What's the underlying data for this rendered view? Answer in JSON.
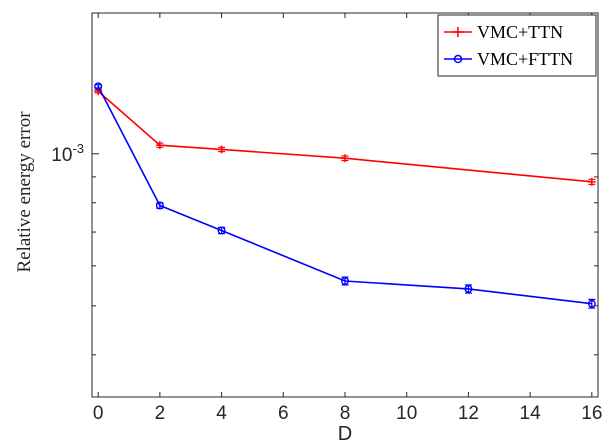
{
  "chart_data": {
    "type": "line",
    "xlabel": "D",
    "ylabel": "Relative energy error",
    "x_ticks": [
      "0",
      "2",
      "4",
      "6",
      "8",
      "10",
      "12",
      "14",
      "16"
    ],
    "y_ticks": [
      {
        "value": 0.001,
        "label": "10^-3"
      }
    ],
    "y_scale": "log",
    "xlim": [
      -0.2,
      16.2
    ],
    "ylim": [
      0.00033,
      0.0019
    ],
    "grid": false,
    "legend_position": "top-right",
    "series": [
      {
        "name": "VMC+TTN",
        "color": "#ff0000",
        "marker": "plus",
        "x": [
          0,
          2,
          4,
          8,
          16
        ],
        "y": [
          0.00133,
          0.00104,
          0.00102,
          0.00098,
          0.00088
        ],
        "err": [
          1e-05,
          1e-05,
          1e-05,
          1e-05,
          1e-05
        ]
      },
      {
        "name": "VMC+FTTN",
        "color": "#0000ff",
        "marker": "circle",
        "x": [
          0,
          2,
          4,
          8,
          12,
          16
        ],
        "y": [
          0.00136,
          0.00079,
          0.000705,
          0.00056,
          0.00054,
          0.000505
        ],
        "err": [
          1e-05,
          1e-05,
          1e-05,
          1e-05,
          1e-05,
          1e-05
        ]
      }
    ]
  }
}
